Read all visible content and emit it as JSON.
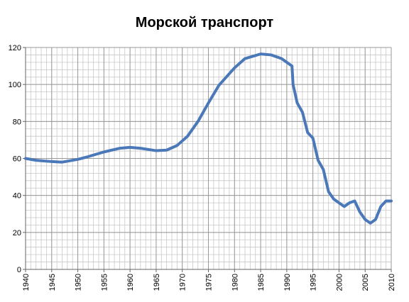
{
  "chart_data": {
    "type": "line",
    "title": "Морской транспорт",
    "x": [
      1940,
      1942,
      1945,
      1947,
      1950,
      1952,
      1955,
      1958,
      1960,
      1962,
      1965,
      1967,
      1969,
      1971,
      1973,
      1975,
      1977,
      1980,
      1982,
      1985,
      1987,
      1989,
      1991,
      1991.2,
      1992,
      1993,
      1994,
      1995,
      1996,
      1997,
      1998,
      1999,
      2000,
      2001,
      2002,
      2003,
      2004,
      2005,
      2006,
      2007,
      2008,
      2009,
      2010
    ],
    "series": [
      {
        "name": "Морской транспорт",
        "color": "#4a78b8",
        "values": [
          60,
          59,
          58.3,
          58,
          59.5,
          61,
          63.5,
          65.5,
          66,
          65.5,
          64.2,
          64.5,
          67,
          72,
          80,
          90,
          99.5,
          109,
          114,
          116.5,
          116,
          114,
          110,
          100,
          90,
          85,
          74,
          71,
          59,
          54,
          42,
          38,
          36,
          34,
          36,
          37,
          31,
          27,
          25,
          27,
          34,
          37,
          37
        ]
      }
    ],
    "xlim": [
      1940,
      2010
    ],
    "xticks": [
      1940,
      1945,
      1950,
      1955,
      1960,
      1965,
      1970,
      1975,
      1980,
      1985,
      1990,
      1995,
      2000,
      2005,
      2010
    ],
    "ylim": [
      0,
      120
    ],
    "yticks": [
      0,
      20,
      40,
      60,
      80,
      100,
      120
    ],
    "grid": true,
    "minor_grid": {
      "x": 1,
      "y": 4
    }
  }
}
